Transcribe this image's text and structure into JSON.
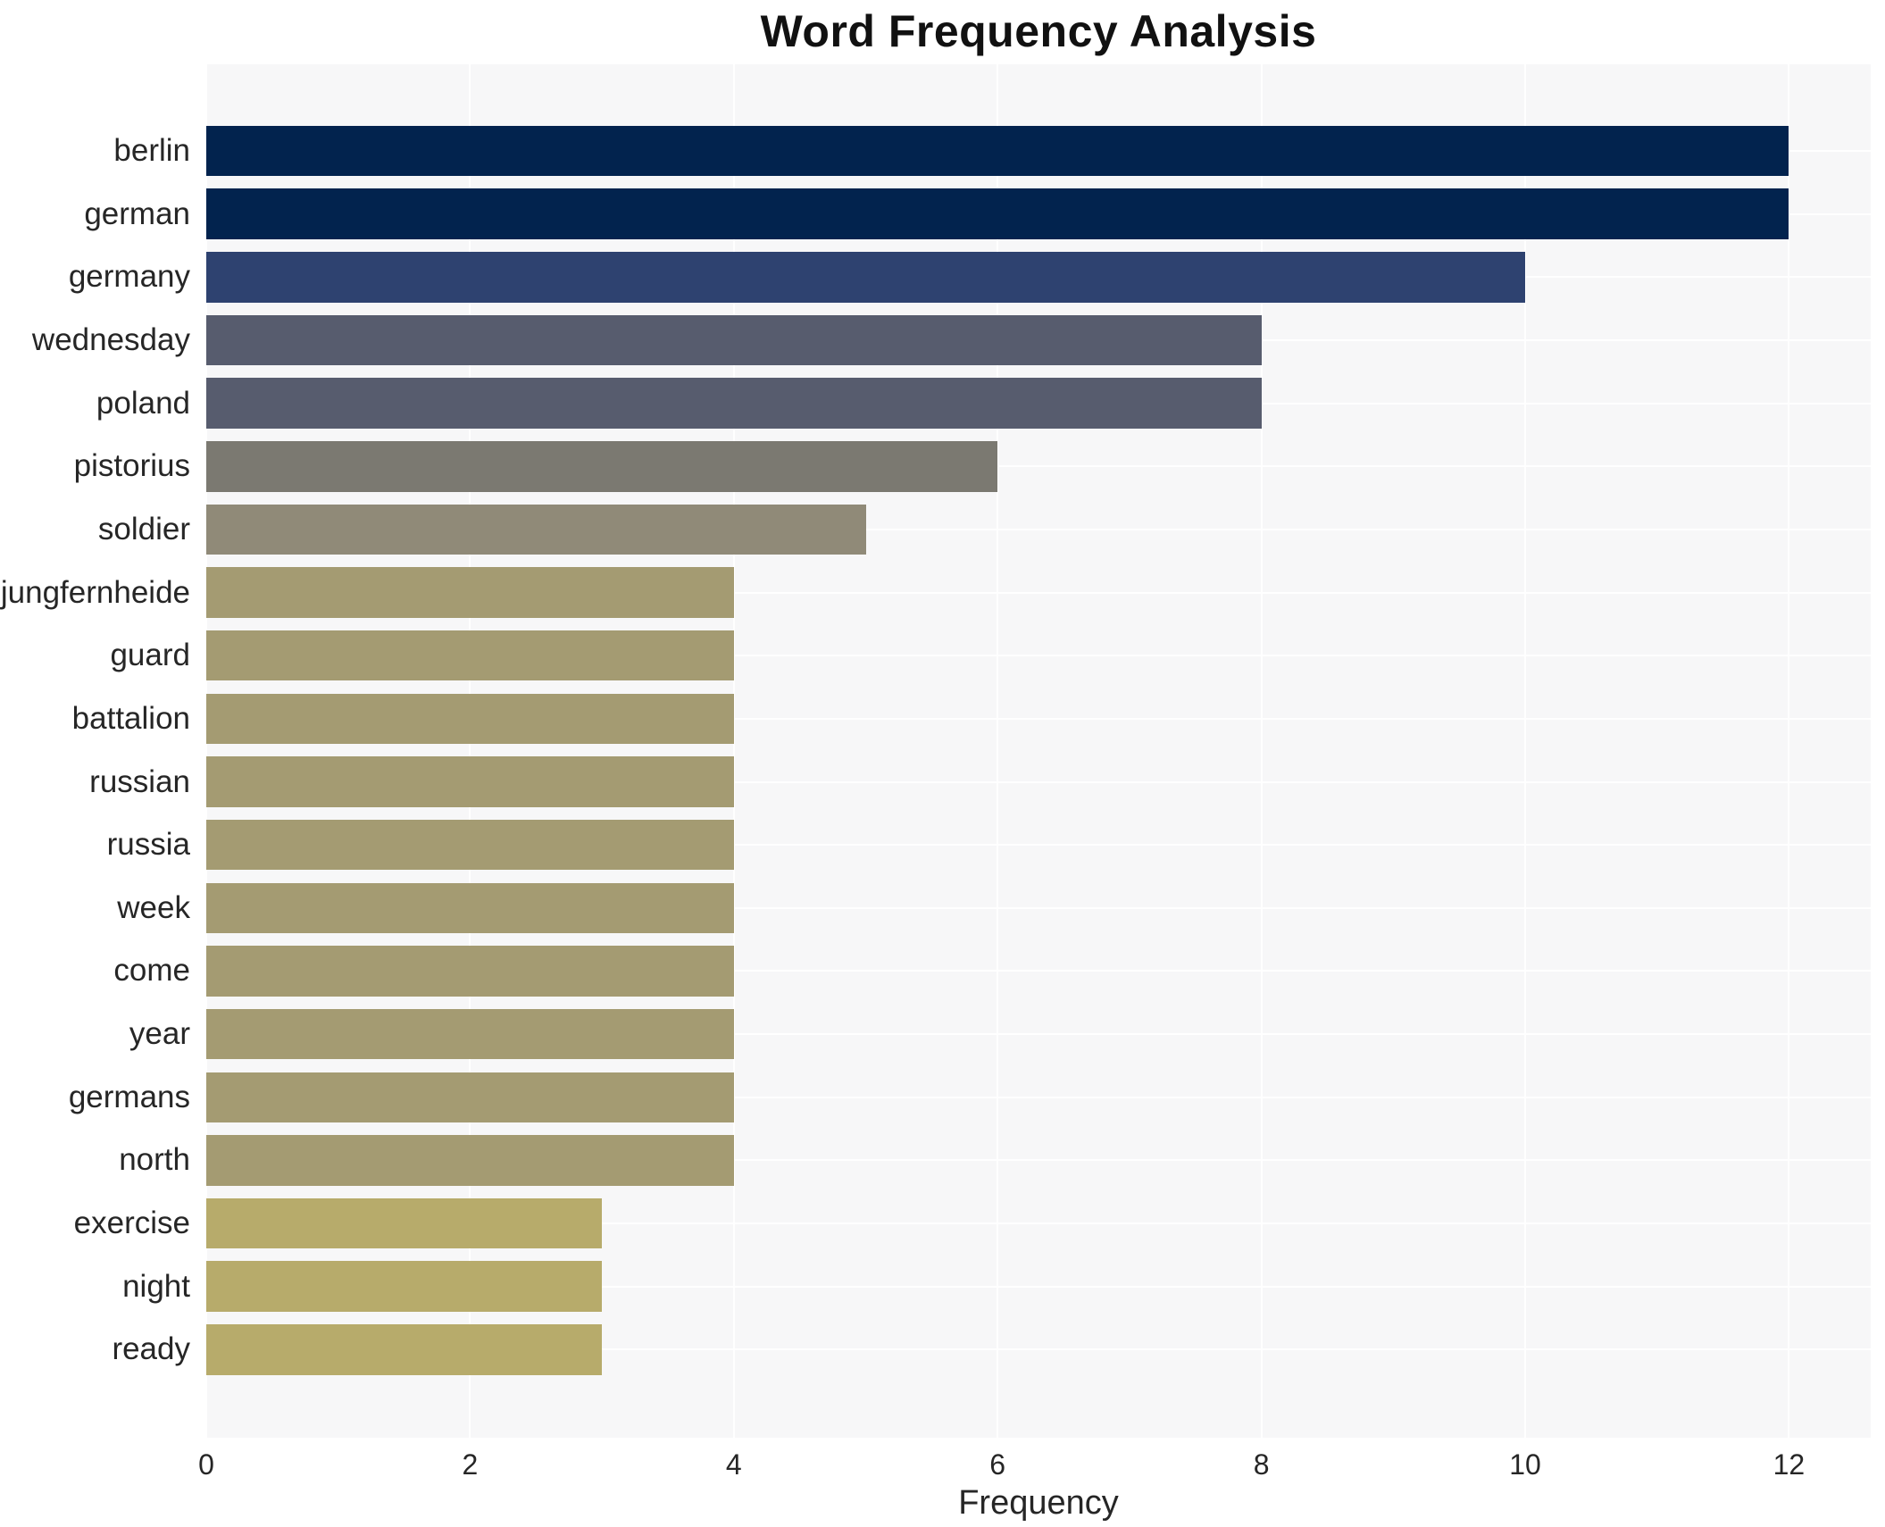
{
  "title": "Word Frequency Analysis",
  "x_axis_label": "Frequency",
  "colors": {
    "plot_background": "#f7f7f8",
    "gridline": "#ffffff",
    "title_text": "#111111",
    "tick_text": "#262626"
  },
  "chart_data": {
    "type": "bar",
    "orientation": "horizontal",
    "title": "Word Frequency Analysis",
    "xlabel": "Frequency",
    "ylabel": "",
    "categories": [
      "berlin",
      "german",
      "germany",
      "wednesday",
      "poland",
      "pistorius",
      "soldier",
      "jungfernheide",
      "guard",
      "battalion",
      "russian",
      "russia",
      "week",
      "come",
      "year",
      "germans",
      "north",
      "exercise",
      "night",
      "ready"
    ],
    "values": [
      12,
      12,
      10,
      8,
      8,
      6,
      5,
      4,
      4,
      4,
      4,
      4,
      4,
      4,
      4,
      4,
      4,
      3,
      3,
      3
    ],
    "bar_colors": [
      "#02234e",
      "#02234e",
      "#2e4270",
      "#575c6e",
      "#575c6e",
      "#7b7971",
      "#908a78",
      "#a49b72",
      "#a49b72",
      "#a49b72",
      "#a49b72",
      "#a49b72",
      "#a49b72",
      "#a49b72",
      "#a49b72",
      "#a49b72",
      "#a49b72",
      "#b7ab6b",
      "#b7ab6b",
      "#b7ab6b"
    ],
    "colormap": "cividis",
    "xticks": [
      0,
      2,
      4,
      6,
      8,
      10,
      12
    ],
    "xlim": [
      0,
      12.6
    ],
    "grid": true,
    "legend": false
  }
}
